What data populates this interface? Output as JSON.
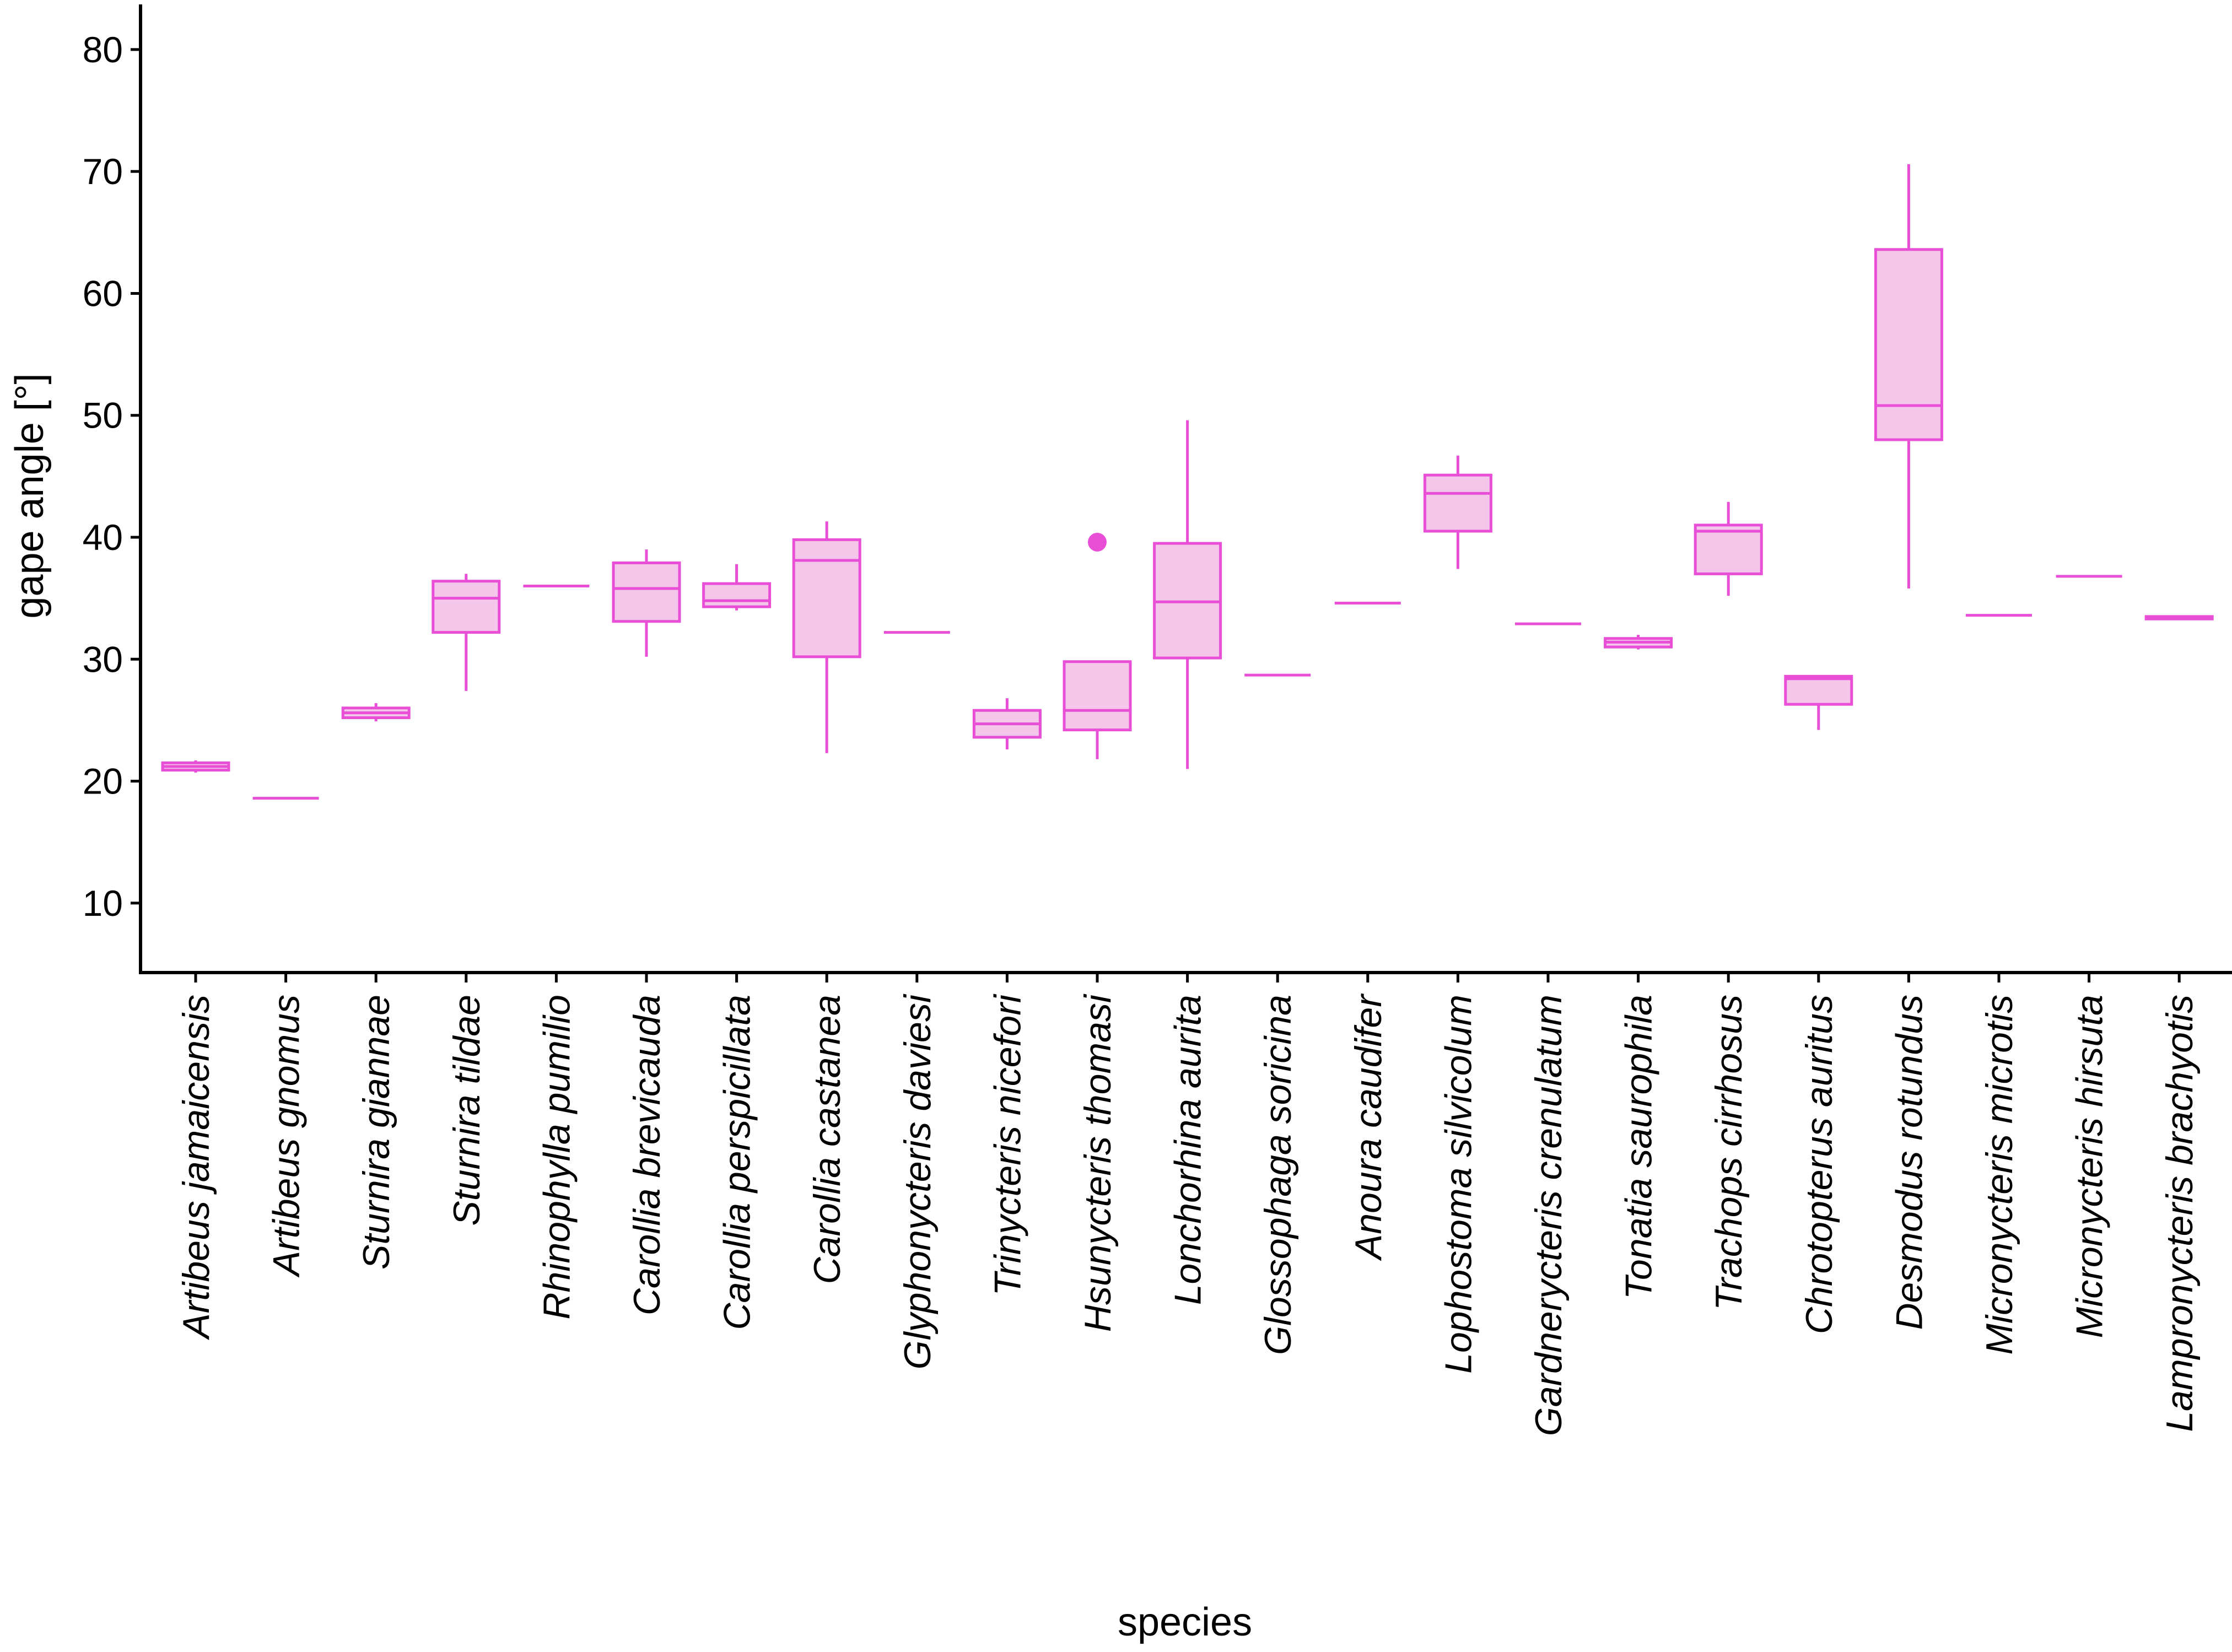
{
  "chart_data": {
    "type": "boxplot",
    "title": "",
    "xlabel": "species",
    "ylabel": "gape angle [°]",
    "ylim": [
      4.3,
      83.7
    ],
    "yticks": [
      10,
      20,
      30,
      40,
      50,
      60,
      70,
      80
    ],
    "colors": {
      "box_stroke": "#e84fd6",
      "box_fill": "#f4c6ea",
      "axis": "#000000"
    },
    "categories": [
      "Artibeus jamaicensis",
      "Artibeus gnomus",
      "Sturnira giannae",
      "Sturnira tildae",
      "Rhinophylla pumilio",
      "Carollia brevicauda",
      "Carollia perspicillata",
      "Carollia castanea",
      "Glyphonycteris daviesi",
      "Trinycteris nicefori",
      "Hsunycteris thomasi",
      "Lonchorhina aurita",
      "Glossophaga soricina",
      "Anoura caudifer",
      "Lophostoma silvicolum",
      "Gardnerycteris crenulatum",
      "Tonatia saurophila",
      "Trachops cirrhosus",
      "Chrotopterus auritus",
      "Desmodus rotundus",
      "Micronycteris microtis",
      "Micronycteris hirsuta",
      "Lampronycteris brachyotis"
    ],
    "boxes": [
      {
        "min": 20.7,
        "q1": 20.9,
        "median": 21.2,
        "q3": 21.5,
        "max": 21.7,
        "outliers": []
      },
      {
        "min": 18.6,
        "q1": 18.6,
        "median": 18.6,
        "q3": 18.6,
        "max": 18.6,
        "outliers": []
      },
      {
        "min": 24.9,
        "q1": 25.2,
        "median": 25.6,
        "q3": 26.0,
        "max": 26.4,
        "outliers": []
      },
      {
        "min": 27.4,
        "q1": 32.2,
        "median": 35.0,
        "q3": 36.4,
        "max": 37.0,
        "outliers": []
      },
      {
        "min": 36.0,
        "q1": 36.0,
        "median": 36.0,
        "q3": 36.0,
        "max": 36.0,
        "outliers": []
      },
      {
        "min": 30.2,
        "q1": 33.1,
        "median": 35.8,
        "q3": 37.9,
        "max": 39.0,
        "outliers": []
      },
      {
        "min": 34.0,
        "q1": 34.3,
        "median": 34.8,
        "q3": 36.2,
        "max": 37.8,
        "outliers": []
      },
      {
        "min": 22.3,
        "q1": 30.2,
        "median": 38.1,
        "q3": 39.8,
        "max": 41.3,
        "outliers": []
      },
      {
        "min": 32.2,
        "q1": 32.2,
        "median": 32.2,
        "q3": 32.2,
        "max": 32.2,
        "outliers": []
      },
      {
        "min": 22.6,
        "q1": 23.6,
        "median": 24.7,
        "q3": 25.8,
        "max": 26.8,
        "outliers": []
      },
      {
        "min": 21.8,
        "q1": 24.2,
        "median": 25.8,
        "q3": 29.8,
        "max": 29.8,
        "outliers": [
          39.6
        ]
      },
      {
        "min": 21.0,
        "q1": 30.1,
        "median": 34.7,
        "q3": 39.5,
        "max": 49.6,
        "outliers": []
      },
      {
        "min": 28.7,
        "q1": 28.7,
        "median": 28.7,
        "q3": 28.7,
        "max": 28.7,
        "outliers": []
      },
      {
        "min": 34.6,
        "q1": 34.6,
        "median": 34.6,
        "q3": 34.6,
        "max": 34.6,
        "outliers": []
      },
      {
        "min": 37.4,
        "q1": 40.5,
        "median": 43.6,
        "q3": 45.1,
        "max": 46.7,
        "outliers": []
      },
      {
        "min": 32.9,
        "q1": 32.9,
        "median": 32.9,
        "q3": 32.9,
        "max": 32.9,
        "outliers": []
      },
      {
        "min": 30.8,
        "q1": 31.0,
        "median": 31.4,
        "q3": 31.7,
        "max": 32.0,
        "outliers": []
      },
      {
        "min": 35.2,
        "q1": 37.0,
        "median": 40.5,
        "q3": 41.0,
        "max": 42.9,
        "outliers": []
      },
      {
        "min": 24.2,
        "q1": 26.3,
        "median": 28.4,
        "q3": 28.6,
        "max": 28.7,
        "outliers": []
      },
      {
        "min": 35.8,
        "q1": 48.0,
        "median": 50.8,
        "q3": 63.6,
        "max": 70.6,
        "outliers": []
      },
      {
        "min": 33.6,
        "q1": 33.6,
        "median": 33.6,
        "q3": 33.6,
        "max": 33.6,
        "outliers": []
      },
      {
        "min": 36.8,
        "q1": 36.8,
        "median": 36.8,
        "q3": 36.8,
        "max": 36.8,
        "outliers": []
      },
      {
        "min": 33.2,
        "q1": 33.3,
        "median": 33.4,
        "q3": 33.5,
        "max": 33.6,
        "outliers": []
      }
    ]
  }
}
